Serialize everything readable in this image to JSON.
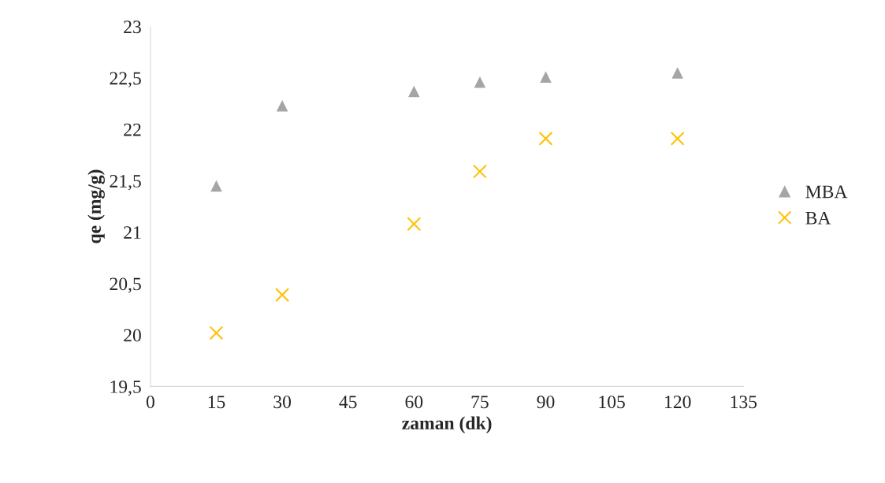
{
  "chart_data": {
    "type": "scatter",
    "xlabel": "zaman (dk)",
    "ylabel": "qe (mg/g)",
    "x": [
      15,
      30,
      60,
      75,
      90,
      120
    ],
    "series": [
      {
        "name": "MBA",
        "color": "#a5a5a5",
        "marker": "triangle",
        "values": [
          21.45,
          22.23,
          22.37,
          22.46,
          22.51,
          22.55
        ]
      },
      {
        "name": "BA",
        "color": "#ffc000",
        "marker": "cross",
        "values": [
          20.02,
          20.39,
          21.08,
          21.59,
          21.91,
          21.91
        ]
      }
    ],
    "xlim": [
      0,
      135
    ],
    "xticks": [
      0,
      15,
      30,
      45,
      60,
      75,
      90,
      105,
      120,
      135
    ],
    "ylim": [
      19.5,
      23
    ],
    "yticks": [
      {
        "value": 19.5,
        "label": "19,5"
      },
      20,
      {
        "value": 20.5,
        "label": "20,5"
      },
      21,
      {
        "value": 21.5,
        "label": "21,5"
      },
      22,
      {
        "value": 22.5,
        "label": "22,5"
      },
      23
    ],
    "grid": false,
    "legend": "right"
  }
}
